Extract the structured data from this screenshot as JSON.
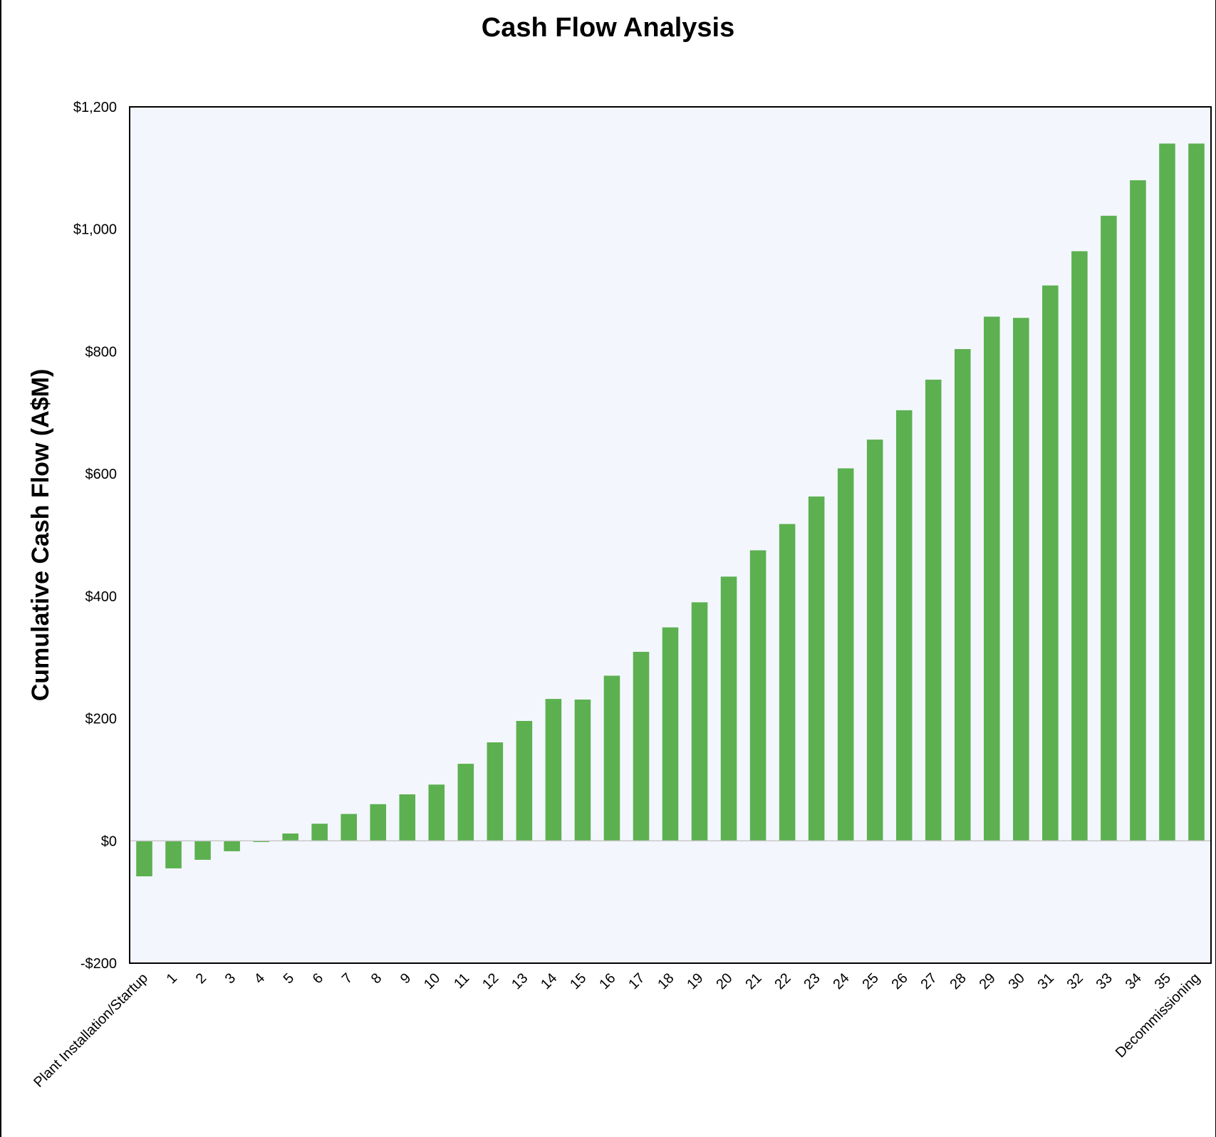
{
  "chart_data": {
    "type": "bar",
    "title": "Cash Flow Analysis",
    "xlabel": "",
    "ylabel": "Cumulative Cash Flow (A$M)",
    "ylim": [
      -200,
      1200
    ],
    "yticks": [
      -200,
      0,
      200,
      400,
      600,
      800,
      1000,
      1200
    ],
    "ytick_labels": [
      "-$200",
      "$0",
      "$200",
      "$400",
      "$600",
      "$800",
      "$1,000",
      "$1,200"
    ],
    "grid": false,
    "legend": "none",
    "categories": [
      "Plant Installation/Startup",
      "1",
      "2",
      "3",
      "4",
      "5",
      "6",
      "7",
      "8",
      "9",
      "10",
      "11",
      "12",
      "13",
      "14",
      "15",
      "16",
      "17",
      "18",
      "19",
      "20",
      "21",
      "22",
      "23",
      "24",
      "25",
      "26",
      "27",
      "28",
      "29",
      "30",
      "31",
      "32",
      "33",
      "34",
      "35",
      "Decommissioning"
    ],
    "values": [
      -58,
      -45,
      -31,
      -17,
      -2,
      12,
      28,
      44,
      60,
      76,
      92,
      126,
      161,
      196,
      232,
      231,
      270,
      309,
      349,
      390,
      432,
      475,
      518,
      563,
      609,
      656,
      704,
      754,
      804,
      857,
      855,
      908,
      964,
      1022,
      1080,
      1140,
      1140
    ],
    "colors": {
      "bar": "#5cb050",
      "plot_bg": "#f3f7fd",
      "zero_line": "#c8c8c8",
      "axis": "#000000"
    }
  }
}
